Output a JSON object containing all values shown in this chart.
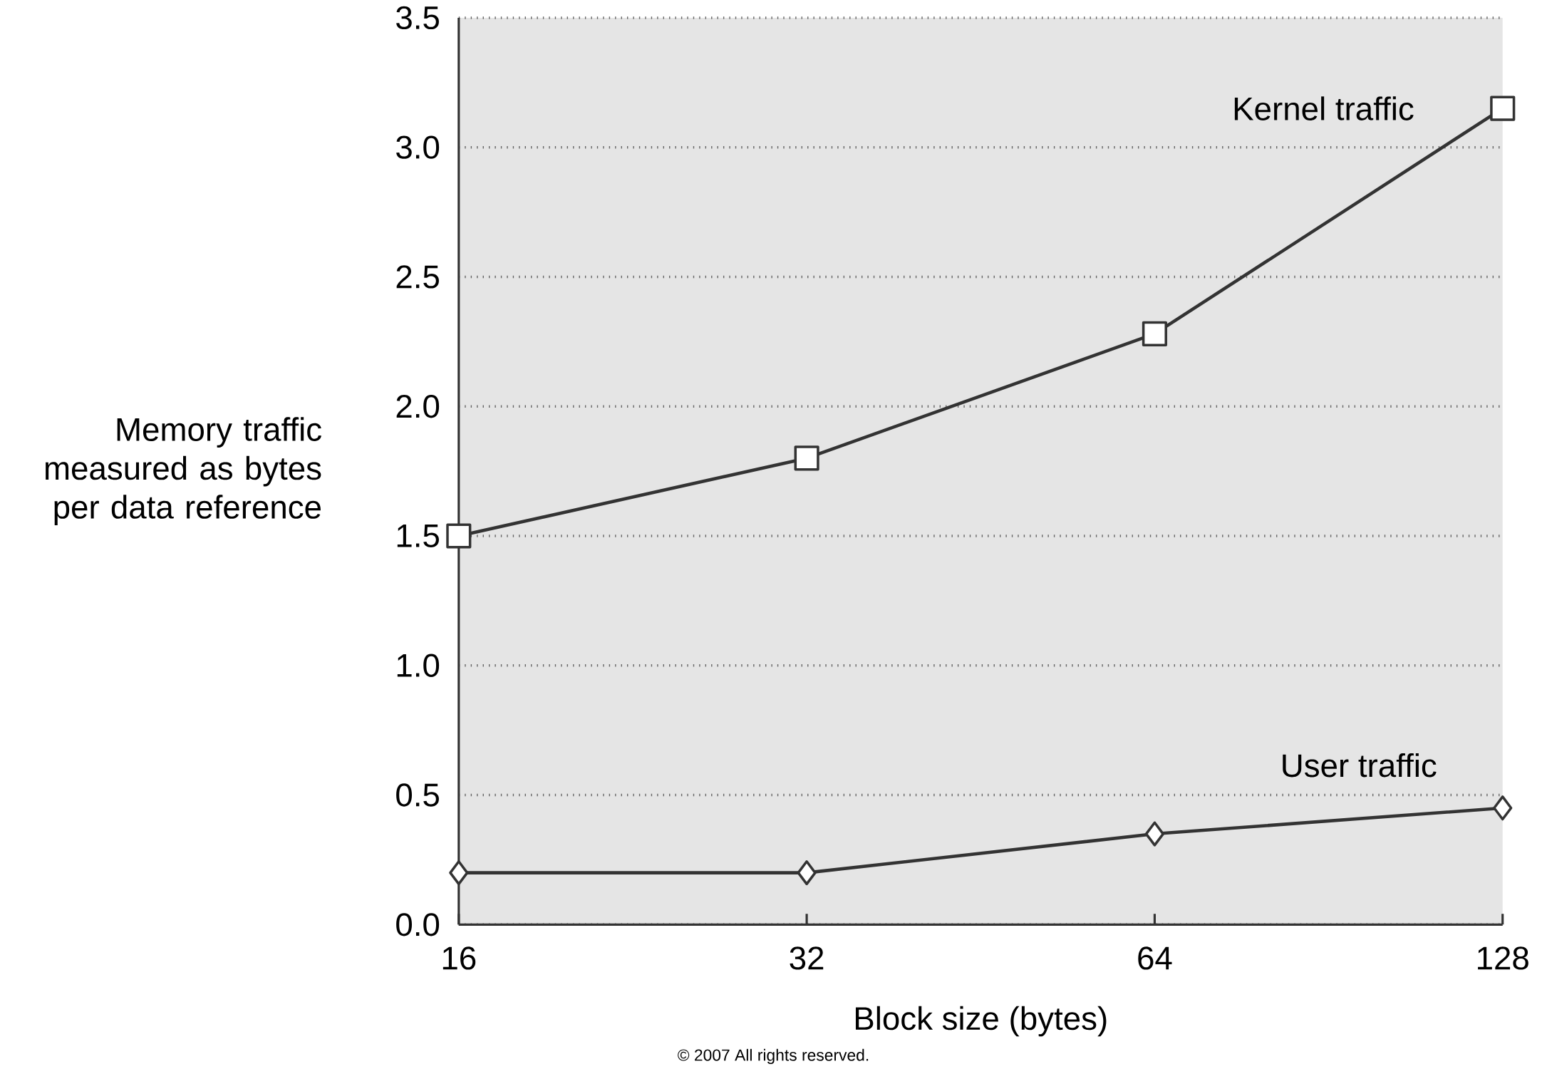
{
  "chart_data": {
    "type": "line",
    "xlabel": "Block size (bytes)",
    "ylabel": "Memory traffic measured as bytes per data reference",
    "categories": [
      "16",
      "32",
      "64",
      "128"
    ],
    "series": [
      {
        "name": "Kernel traffic",
        "color": "#333333",
        "marker": "square",
        "values": [
          1.5,
          1.8,
          2.28,
          3.15
        ]
      },
      {
        "name": "User traffic",
        "color": "#333333",
        "marker": "diamond",
        "values": [
          0.2,
          0.2,
          0.35,
          0.45
        ]
      }
    ],
    "ylim": [
      0,
      3.5
    ],
    "yticks": [
      {
        "value": 0,
        "label": "0.0"
      },
      {
        "value": 0.5,
        "label": "0.5"
      },
      {
        "value": 1,
        "label": "1.0"
      },
      {
        "value": 1.5,
        "label": "1.5"
      },
      {
        "value": 2,
        "label": "2.0"
      },
      {
        "value": 2.5,
        "label": "2.5"
      },
      {
        "value": 3,
        "label": "3.0"
      },
      {
        "value": 3.5,
        "label": "3.5"
      }
    ],
    "grid": "y",
    "line_style": "solid",
    "annotations": [
      "© 2007 All rights reserved."
    ]
  }
}
